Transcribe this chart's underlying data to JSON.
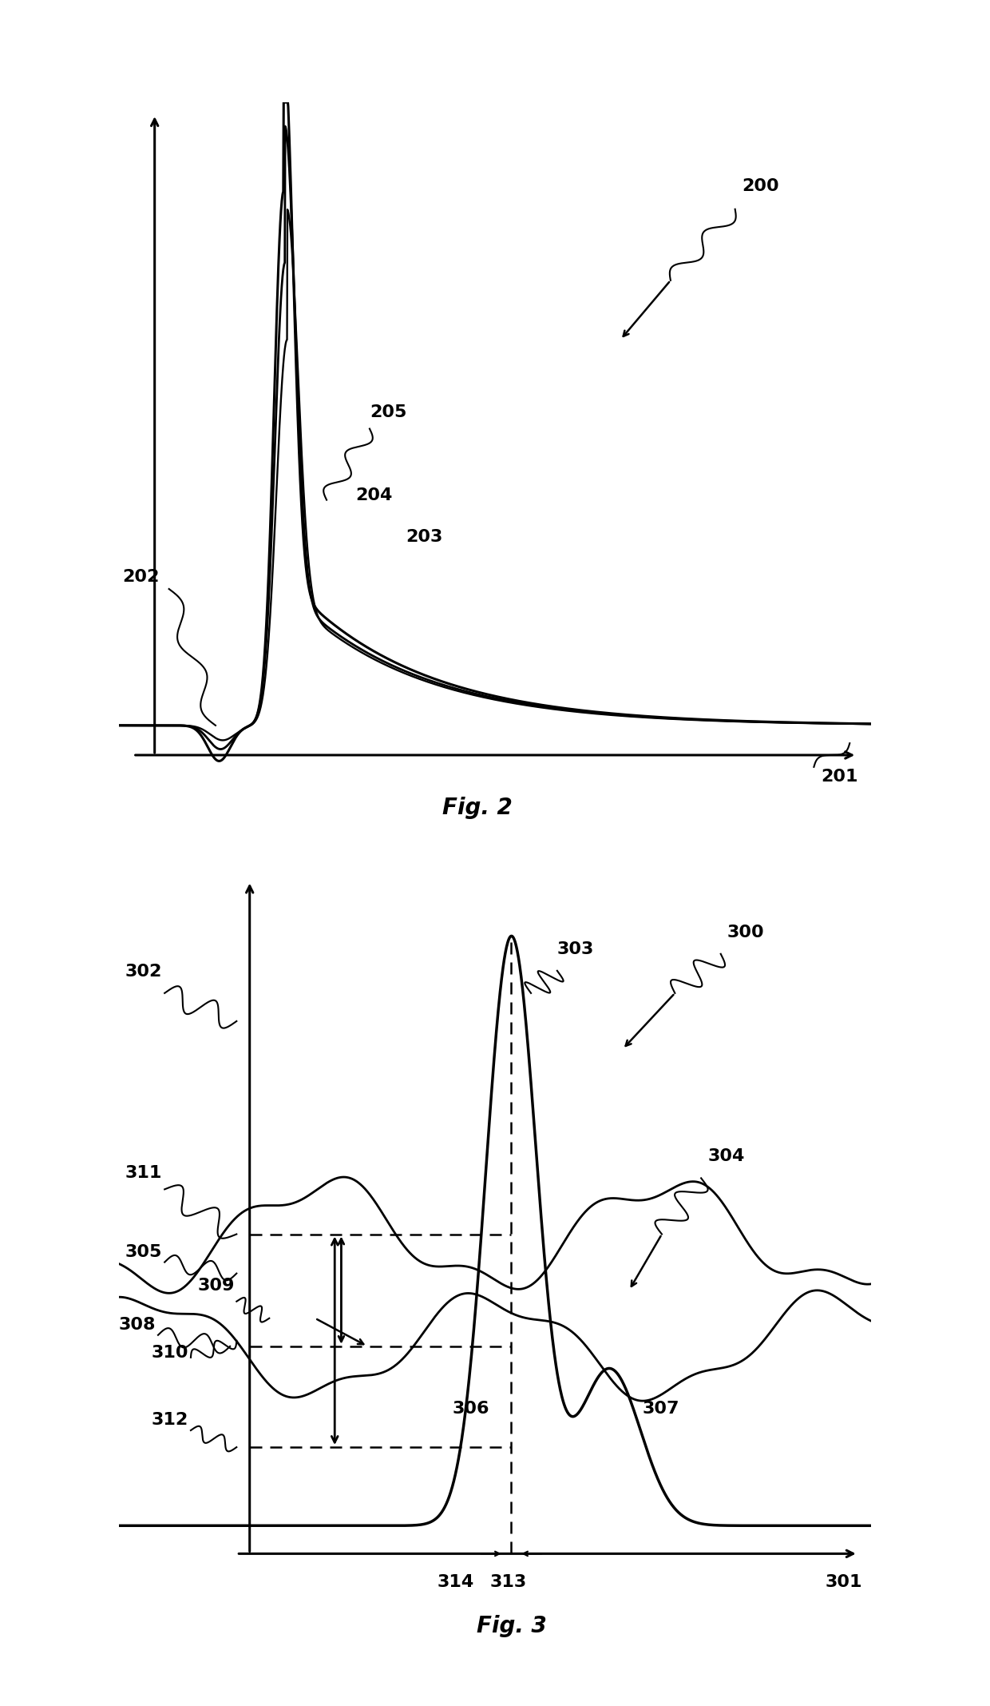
{
  "fig2": {
    "label_200": "200",
    "label_201": "201",
    "label_202": "202",
    "label_203": "203",
    "label_204": "204",
    "label_205": "205",
    "fig_label": "Fig. 2"
  },
  "fig3": {
    "label_300": "300",
    "label_301": "301",
    "label_302": "302",
    "label_303": "303",
    "label_304": "304",
    "label_305": "305",
    "label_306": "306",
    "label_307": "307",
    "label_308": "308",
    "label_309": "309",
    "label_310": "310",
    "label_311": "311",
    "label_312": "312",
    "label_313": "313",
    "label_314": "314",
    "fig_label": "Fig. 3"
  },
  "line_color": "#000000",
  "bg_color": "#ffffff",
  "fontsize_label": 16,
  "fontsize_fig": 20
}
